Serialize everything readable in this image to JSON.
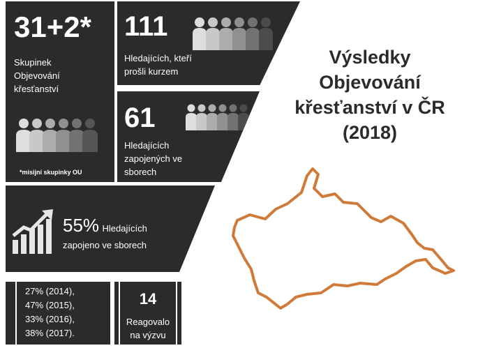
{
  "colors": {
    "panel": "#2b2b2b",
    "map_outline": "#d07a3a",
    "text_light": "#ffffff",
    "title": "#2b2b2b"
  },
  "stats": {
    "groups": {
      "number": "31+2*",
      "label_lines": [
        "Skupinek",
        "Objevování",
        "křesťanství"
      ],
      "footnote": "*misijní skupinky OU",
      "icon": "people-icon"
    },
    "seekers_completed": {
      "number": "111",
      "label_lines": [
        "Hledajících, kteří",
        "prošli kurzem"
      ],
      "icon": "people-icon"
    },
    "seekers_involved": {
      "number": "61",
      "label_lines": [
        "Hledajících",
        "zapojených ve",
        "sborech"
      ],
      "icon": "people-icon"
    },
    "percent_involved": {
      "number": "55%",
      "label_line1": "Hledajících",
      "label_line2": "zapojeno ve sborech",
      "icon": "growth-chart-icon"
    },
    "history": {
      "lines": [
        "27% (2014),",
        "47% (2015),",
        "33% (2016),",
        "38% (2017)."
      ]
    },
    "responded": {
      "number": "14",
      "label_lines": [
        "Reagovalo",
        "na výzvu"
      ]
    }
  },
  "title_lines": [
    "Výsledky",
    "Objevování",
    "křesťanství v ČR",
    "(2018)"
  ],
  "map": {
    "icon": "czech-republic-map"
  }
}
